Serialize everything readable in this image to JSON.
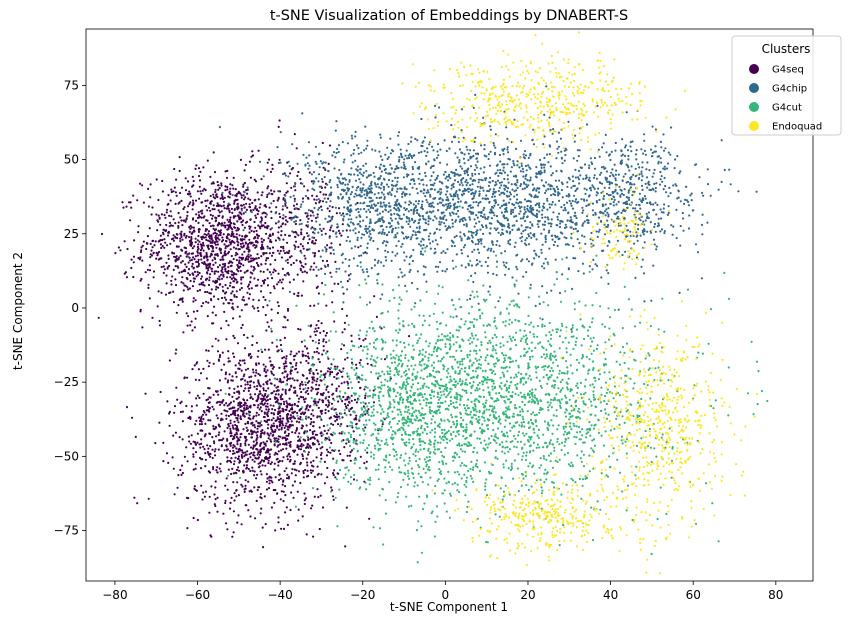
{
  "chart_data": {
    "type": "scatter",
    "title": "t-SNE Visualization of Embeddings by DNABERT-S",
    "xlabel": "t-SNE Component 1",
    "ylabel": "t-SNE Component 2",
    "xlim": [
      -87,
      89
    ],
    "ylim": [
      -92,
      94
    ],
    "xticks": [
      -80,
      -60,
      -40,
      -20,
      0,
      20,
      40,
      60,
      80
    ],
    "yticks": [
      -75,
      -50,
      -25,
      0,
      25,
      50,
      75
    ],
    "grid": false,
    "legend": {
      "title": "Clusters",
      "position": "top-right"
    },
    "series": [
      {
        "name": "G4seq",
        "color": "#440154",
        "clusters": [
          {
            "cx": -55,
            "cy": 22,
            "sx": 9,
            "sy": 12,
            "n": 1300
          },
          {
            "cx": -45,
            "cy": -40,
            "sx": 10,
            "sy": 14,
            "n": 1400
          },
          {
            "cx": -30,
            "cy": -30,
            "sx": 7,
            "sy": 12,
            "n": 350
          },
          {
            "cx": -35,
            "cy": 25,
            "sx": 6,
            "sy": 12,
            "n": 250
          }
        ]
      },
      {
        "name": "G4chip",
        "color": "#31688e",
        "clusters": [
          {
            "cx": 10,
            "cy": 35,
            "sx": 20,
            "sy": 12,
            "n": 1800
          },
          {
            "cx": 45,
            "cy": 40,
            "sx": 8,
            "sy": 9,
            "n": 350
          },
          {
            "cx": -20,
            "cy": 35,
            "sx": 10,
            "sy": 12,
            "n": 450
          }
        ]
      },
      {
        "name": "G4cut",
        "color": "#35b779",
        "clusters": [
          {
            "cx": 12,
            "cy": -30,
            "sx": 20,
            "sy": 17,
            "n": 2200
          },
          {
            "cx": -10,
            "cy": -40,
            "sx": 9,
            "sy": 14,
            "n": 400
          }
        ]
      },
      {
        "name": "Endoquad",
        "color": "#fde725",
        "clusters": [
          {
            "cx": 22,
            "cy": 70,
            "sx": 13,
            "sy": 7,
            "n": 500
          },
          {
            "cx": 52,
            "cy": -40,
            "sx": 8,
            "sy": 16,
            "n": 550
          },
          {
            "cx": 25,
            "cy": -70,
            "sx": 9,
            "sy": 6,
            "n": 350
          },
          {
            "cx": 43,
            "cy": 25,
            "sx": 4,
            "sy": 7,
            "n": 100
          }
        ]
      }
    ]
  }
}
